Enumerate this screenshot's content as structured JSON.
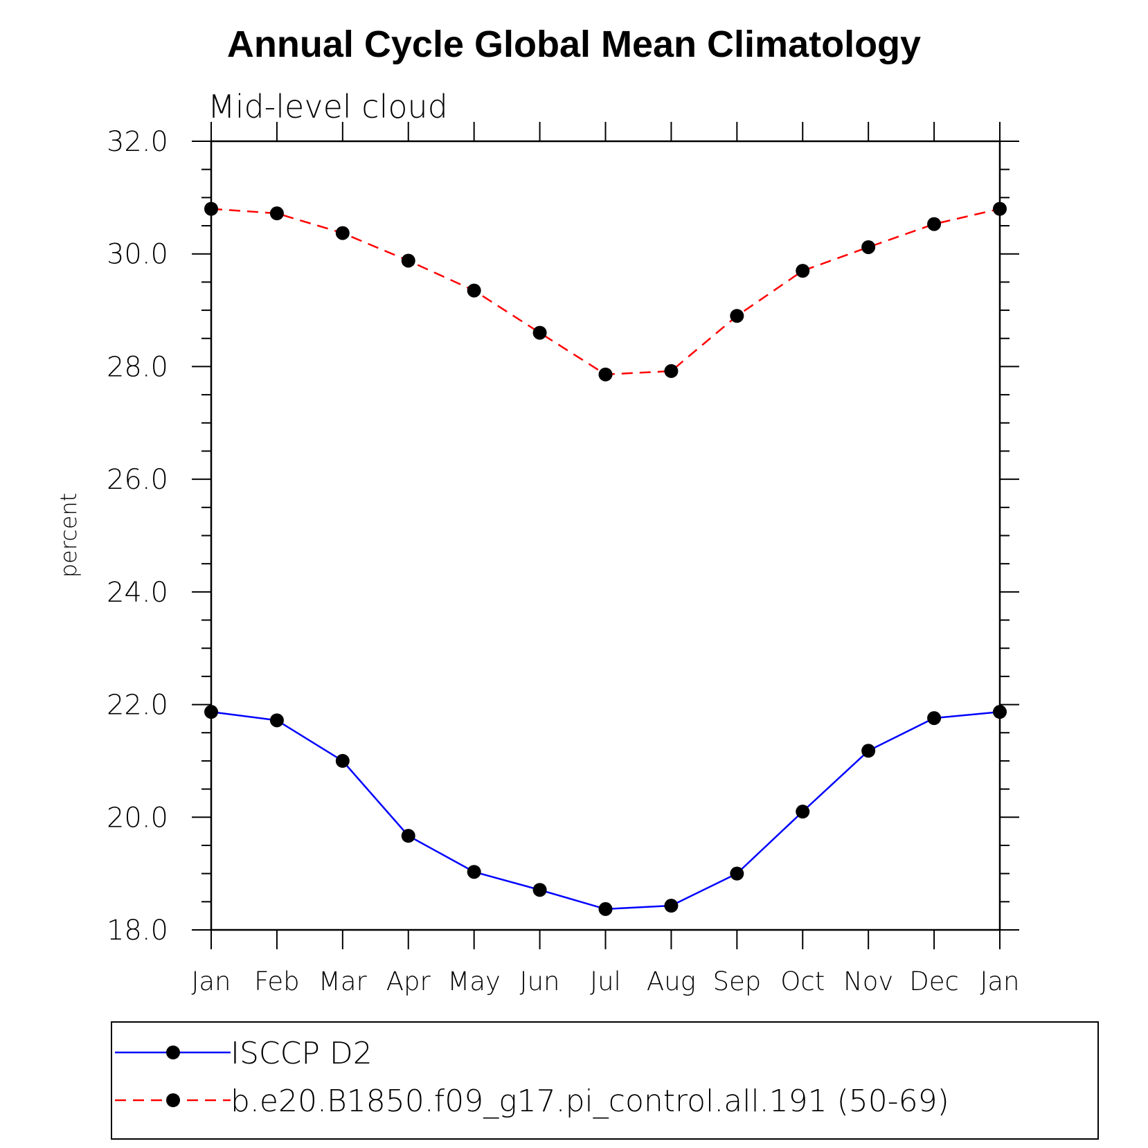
{
  "chart_data": {
    "type": "line",
    "title": "Annual Cycle Global Mean Climatology",
    "subtitle": "Mid-level cloud",
    "xlabel": "",
    "ylabel": "percent",
    "categories": [
      "Jan",
      "Feb",
      "Mar",
      "Apr",
      "May",
      "Jun",
      "Jul",
      "Aug",
      "Sep",
      "Oct",
      "Nov",
      "Dec",
      "Jan"
    ],
    "ylim": [
      18.0,
      32.0
    ],
    "yticks": [
      "18.0",
      "20.0",
      "22.0",
      "24.0",
      "26.0",
      "28.0",
      "30.0",
      "32.0"
    ],
    "grid": false,
    "legend_position": "bottom",
    "series": [
      {
        "name": "ISCCP D2",
        "color": "#0000ff",
        "line_style": "solid",
        "marker": "filled-circle",
        "values": [
          21.87,
          21.72,
          21.0,
          19.67,
          19.03,
          18.71,
          18.37,
          18.43,
          19.0,
          20.1,
          21.18,
          21.76,
          21.87
        ]
      },
      {
        "name": "b.e20.B1850.f09_g17.pi_control.all.191 (50-69)",
        "color": "#ff0000",
        "line_style": "dashed",
        "marker": "filled-circle",
        "values": [
          30.8,
          30.72,
          30.37,
          29.88,
          29.35,
          28.6,
          27.86,
          27.92,
          28.9,
          29.7,
          30.12,
          30.53,
          30.8
        ]
      }
    ]
  }
}
